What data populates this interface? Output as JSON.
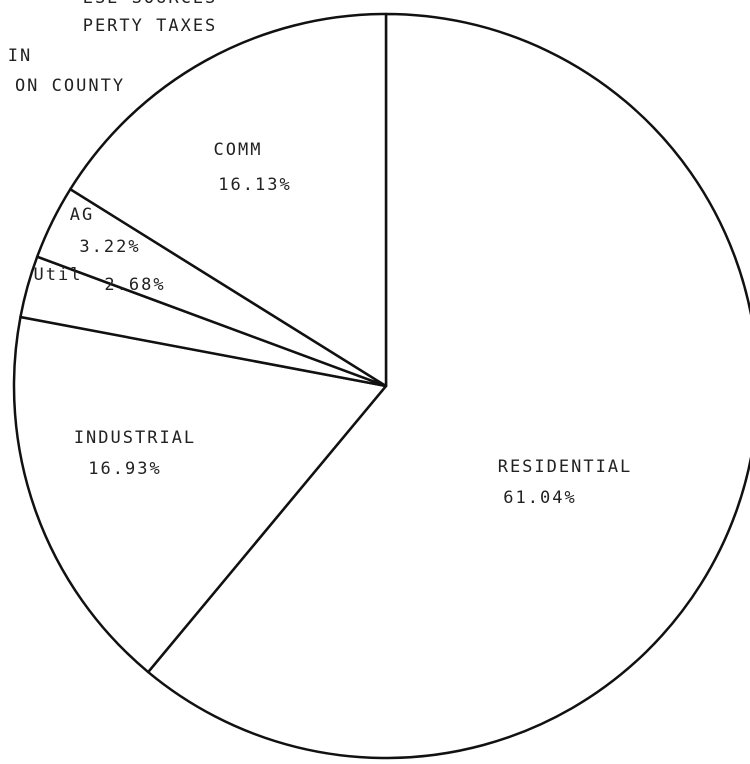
{
  "chart_data": {
    "type": "pie",
    "title_lines": [
      "ESE SOURCES",
      "PERTY TAXES",
      "IN",
      "ON COUNTY"
    ],
    "categories": [
      "RESIDENTIAL",
      "INDUSTRIAL",
      "Util",
      "AG",
      "COMM"
    ],
    "values": [
      61.04,
      16.93,
      2.68,
      3.22,
      16.13
    ],
    "value_labels": [
      "61.04%",
      "16.93%",
      "2.68%",
      "3.22%",
      "16.13%"
    ],
    "color": "#ffffff",
    "edge_color": "#111111"
  }
}
